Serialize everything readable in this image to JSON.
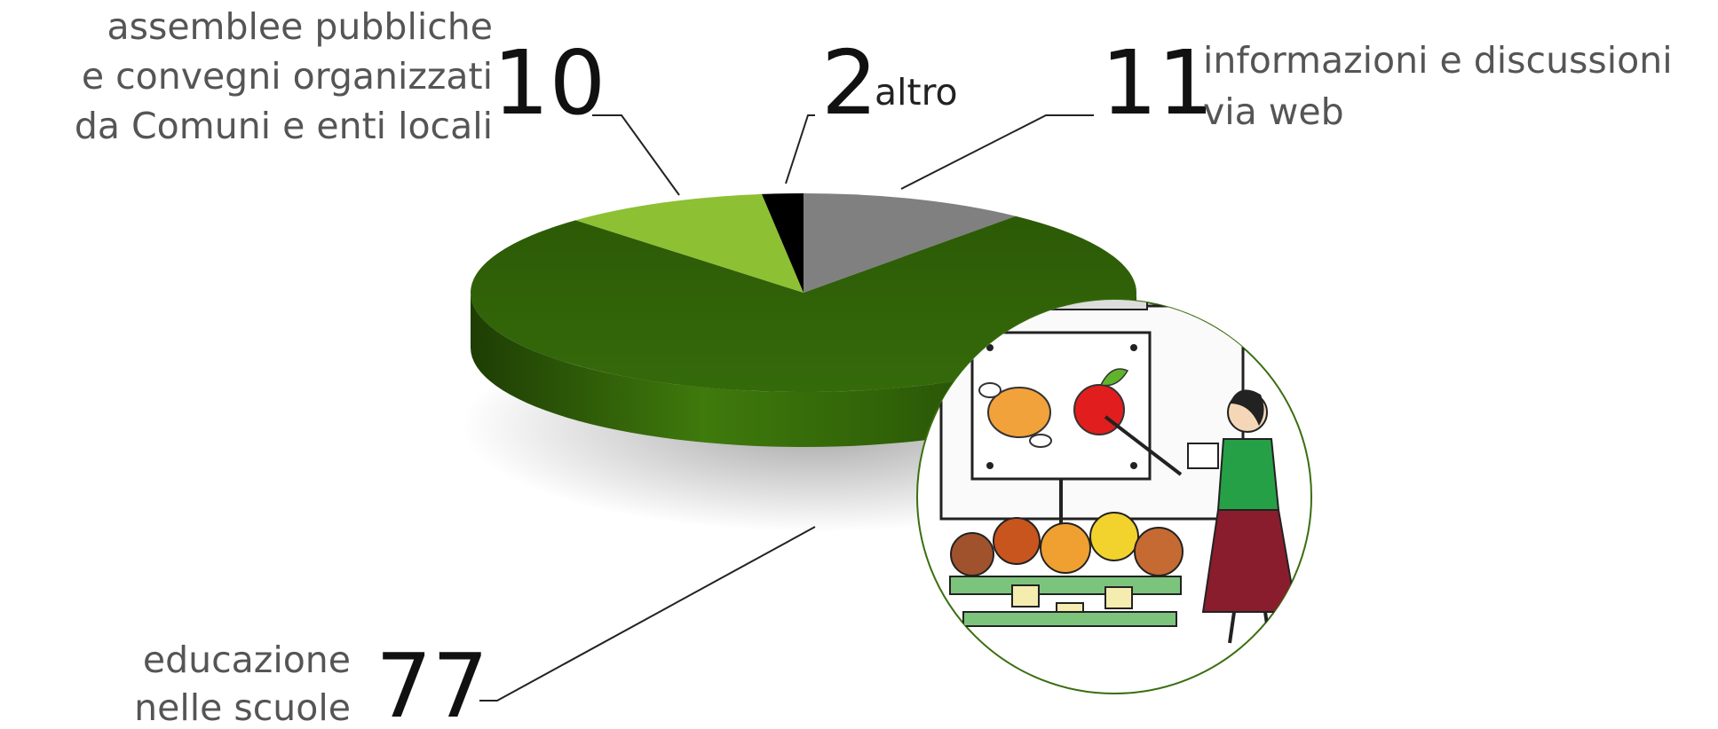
{
  "chart_data": {
    "type": "pie",
    "style": "3d",
    "slices": [
      {
        "value": 11,
        "label_lines": [
          "informazioni e discussioni",
          "via web"
        ],
        "color": "#808080"
      },
      {
        "value": 77,
        "label_lines": [
          "educazione",
          "nelle scuole"
        ],
        "color": "#2f5d07"
      },
      {
        "value": 10,
        "label_lines": [
          "assemblee pubbliche",
          "e convegni organizzati",
          "da Comuni e enti locali"
        ],
        "color": "#8dc033"
      },
      {
        "value": 2,
        "label_lines": [
          "altro"
        ],
        "color": "#000000"
      }
    ]
  },
  "illustration": {
    "description_icon": "teacher-classroom-illustration"
  }
}
